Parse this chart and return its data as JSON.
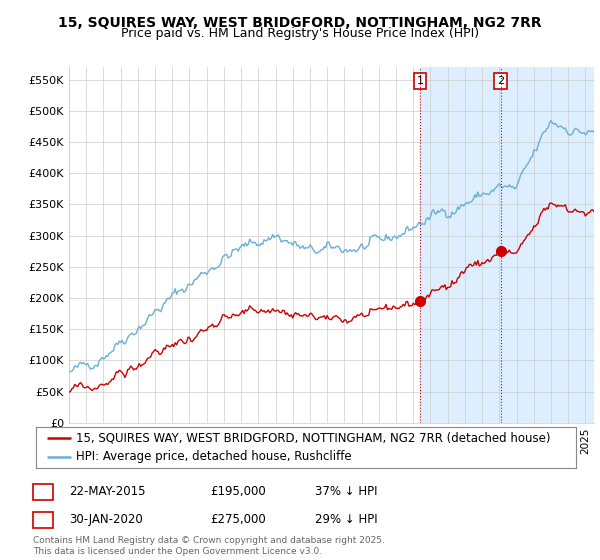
{
  "title": "15, SQUIRES WAY, WEST BRIDGFORD, NOTTINGHAM, NG2 7RR",
  "subtitle": "Price paid vs. HM Land Registry's House Price Index (HPI)",
  "ylim": [
    0,
    570000
  ],
  "yticks": [
    0,
    50000,
    100000,
    150000,
    200000,
    250000,
    300000,
    350000,
    400000,
    450000,
    500000,
    550000
  ],
  "ytick_labels": [
    "£0",
    "£50K",
    "£100K",
    "£150K",
    "£200K",
    "£250K",
    "£300K",
    "£350K",
    "£400K",
    "£450K",
    "£500K",
    "£550K"
  ],
  "xlim_start": 1995.0,
  "xlim_end": 2025.5,
  "hpi_color": "#6baed6",
  "sale_color": "#cc0000",
  "shaded_color": "#ddeeff",
  "legend_label_sale": "15, SQUIRES WAY, WEST BRIDGFORD, NOTTINGHAM, NG2 7RR (detached house)",
  "legend_label_hpi": "HPI: Average price, detached house, Rushcliffe",
  "sale1_date": 2015.39,
  "sale1_price": 195000,
  "sale1_label": "1",
  "sale2_date": 2020.08,
  "sale2_price": 275000,
  "sale2_label": "2",
  "annotation1": "22-MAY-2015",
  "annotation1_price": "£195,000",
  "annotation1_hpi": "37% ↓ HPI",
  "annotation2": "30-JAN-2020",
  "annotation2_price": "£275,000",
  "annotation2_hpi": "29% ↓ HPI",
  "footer": "Contains HM Land Registry data © Crown copyright and database right 2025.\nThis data is licensed under the Open Government Licence v3.0.",
  "bg_color": "#ffffff",
  "grid_color": "#cccccc",
  "title_fontsize": 10,
  "subtitle_fontsize": 9,
  "tick_fontsize": 8,
  "legend_fontsize": 8.5
}
